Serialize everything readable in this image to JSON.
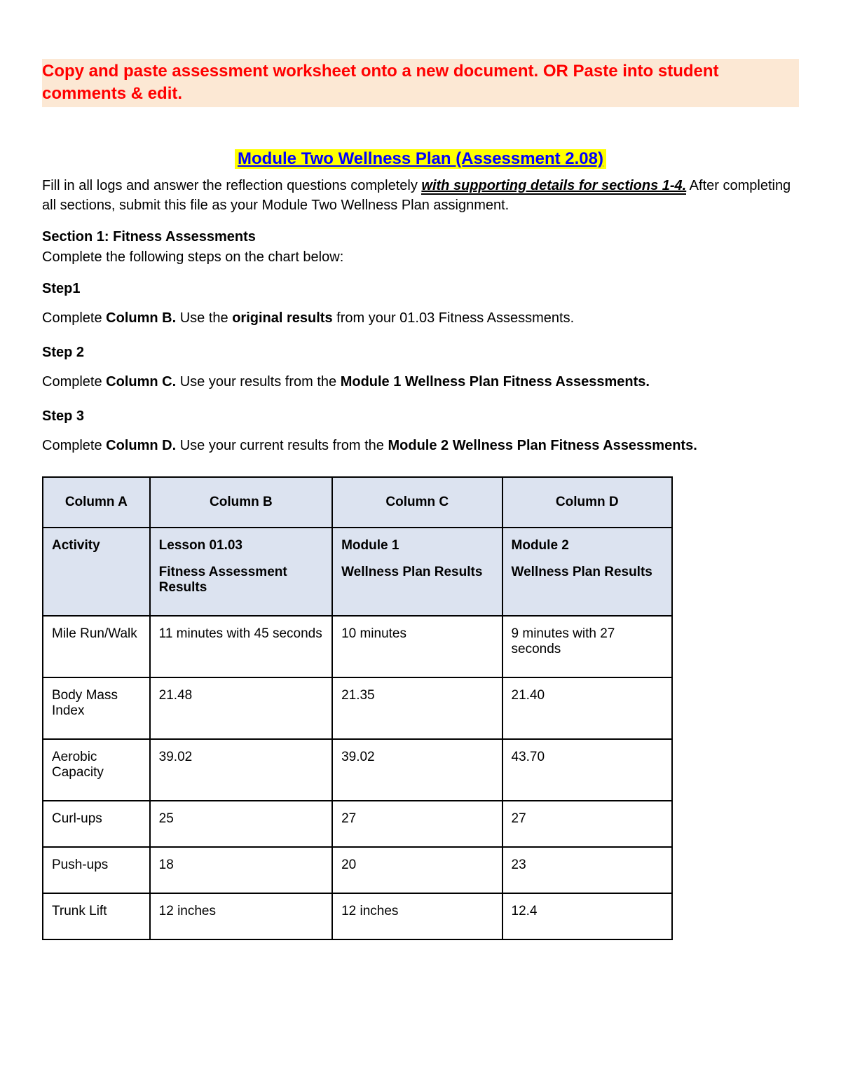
{
  "banner": {
    "text": "Copy and paste assessment worksheet onto a new document. OR Paste into student comments & edit.",
    "bg_color": "#fce8d4",
    "text_color": "#ff0000"
  },
  "title": {
    "text": "Module Two Wellness Plan (Assessment 2.08)",
    "bg_color": "#ffff00",
    "text_color": "#0000ff"
  },
  "intro": {
    "part1": "Fill in all logs and answer the reflection questions completely ",
    "emphasis": "with supporting details for sections 1-4.",
    "part2": " After completing all sections, submit this file as your Module Two Wellness Plan assignment."
  },
  "section1": {
    "heading": "Section 1: Fitness Assessments",
    "sub": "Complete the following steps on the chart below:"
  },
  "steps": [
    {
      "label": "Step1",
      "prefix": "Complete ",
      "bold1": "Column B.",
      "mid": " Use the ",
      "bold2": "original results",
      "suffix": " from your 01.03 Fitness Assessments."
    },
    {
      "label": "Step 2",
      "prefix": "Complete ",
      "bold1": "Column C.",
      "mid": " Use your results from the ",
      "bold2": "Module 1 Wellness Plan Fitness Assessments.",
      "suffix": ""
    },
    {
      "label": "Step 3",
      "prefix": "Complete ",
      "bold1": "Column D.",
      "mid": " Use your current results from the ",
      "bold2": "Module 2 Wellness Plan Fitness Assessments.",
      "suffix": ""
    }
  ],
  "table": {
    "header_bg": "#dce3f0",
    "border_color": "#000000",
    "columns_row1": [
      "Column A",
      "Column B",
      "Column C",
      "Column D"
    ],
    "columns_row2": {
      "a": "Activity",
      "b_line1": "Lesson 01.03",
      "b_line2": "Fitness Assessment Results",
      "c_line1": "Module 1",
      "c_line2": "Wellness Plan Results",
      "d_line1": "Module 2",
      "d_line2": "Wellness Plan Results"
    },
    "rows": [
      {
        "a": "Mile Run/Walk",
        "b": "11 minutes with 45 seconds",
        "c": "10 minutes",
        "d": "9 minutes with 27 seconds"
      },
      {
        "a": "Body Mass Index",
        "b": "21.48",
        "c": "21.35",
        "d": "21.40"
      },
      {
        "a": "Aerobic Capacity",
        "b": "39.02",
        "c": "39.02",
        "d": "43.70"
      },
      {
        "a": "Curl-ups",
        "b": "25",
        "c": "27",
        "d": "27"
      },
      {
        "a": "Push-ups",
        "b": "18",
        "c": "20",
        "d": "23"
      },
      {
        "a": "Trunk Lift",
        "b": "12 inches",
        "c": "12 inches",
        "d": "12.4"
      }
    ]
  }
}
